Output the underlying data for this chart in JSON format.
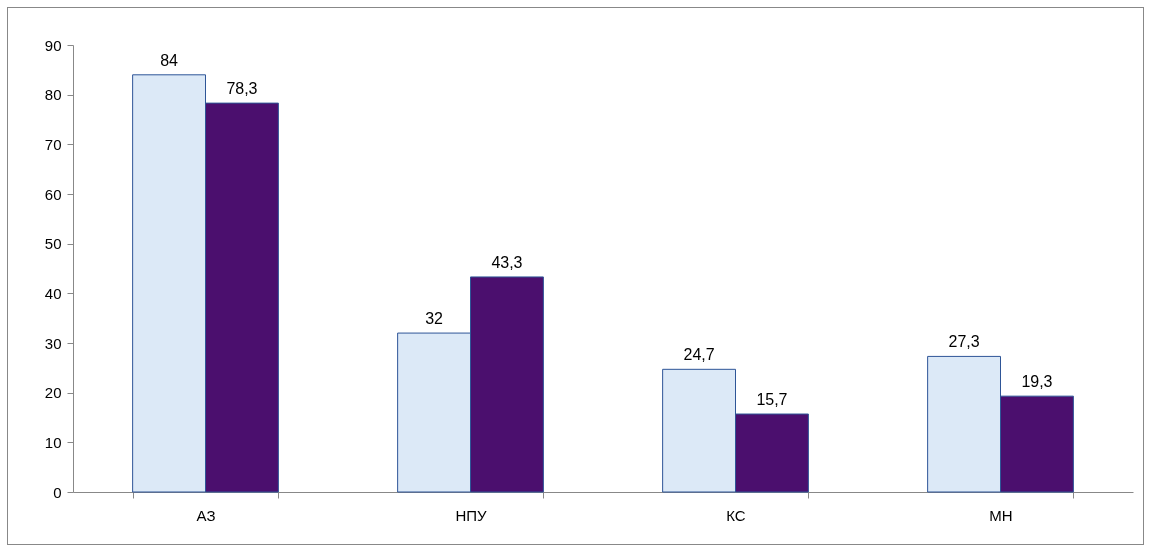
{
  "chart_data": {
    "type": "bar",
    "categories": [
      "АЗ",
      "НПУ",
      "КС",
      "МН"
    ],
    "series": [
      {
        "color": "#dce9f7",
        "values": [
          84,
          32,
          24.7,
          27.3
        ],
        "value_labels": [
          "84",
          "32",
          "24,7",
          "27,3"
        ]
      },
      {
        "color": "#4b0f6e",
        "values": [
          78.3,
          43.3,
          15.7,
          19.3
        ],
        "value_labels": [
          "78,3",
          "43,3",
          "15,7",
          "19,3"
        ]
      }
    ],
    "ylim": [
      0,
      90
    ],
    "yticks": [
      0,
      10,
      20,
      30,
      40,
      50,
      60,
      70,
      80,
      90
    ],
    "grid": false,
    "legend": false
  }
}
